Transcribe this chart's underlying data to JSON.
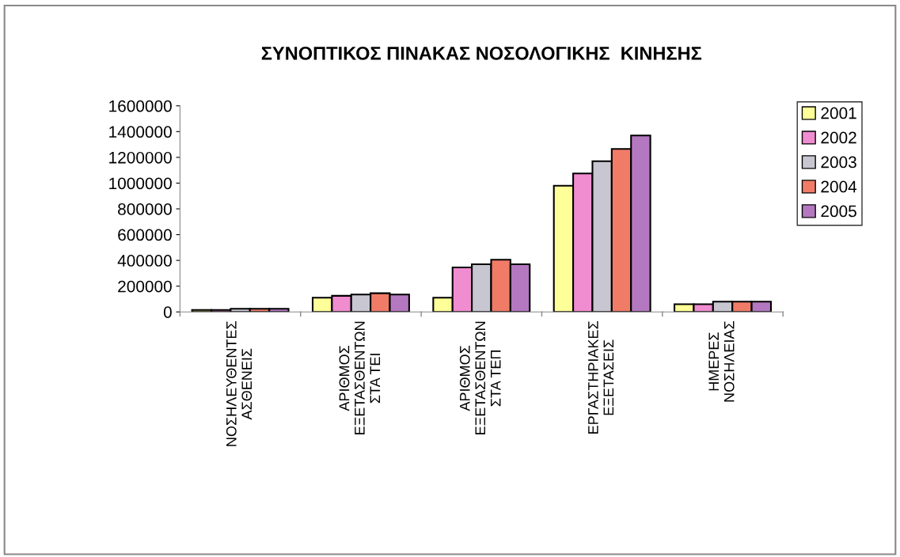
{
  "chart_data": {
    "type": "bar",
    "title": "ΣΥΝΟΠΤΙΚΟΣ ΠΙΝΑΚΑΣ ΝΟΣΟΛΟΓΙΚΗΣ  ΚΙΝΗΣΗΣ",
    "categories": [
      "ΝΟΣΗΛΕΥΘΕΝΤΕΣ\nΑΣΘΕΝΕΙΣ",
      "ΑΡΙΘΜΟΣ\nΕΞΕΤΑΣΘΕΝΤΩΝ\nΣΤΑ ΤΕΙ",
      "ΑΡΙΘΜΟΣ\nΕΞΕΤΑΣΘΕΝΤΩΝ\nΣΤΑ ΤΕΠ",
      "ΕΡΓΑΣΤΗΡΙΑΚΕΣ\nΕΞΕΤΑΣΕΙΣ",
      "ΗΜΕΡΕΣ\nΝΟΣΗΛΕΙΑΣ"
    ],
    "series": [
      {
        "name": "2001",
        "color": "#ffff99",
        "values": [
          15000,
          110000,
          110000,
          980000,
          60000
        ]
      },
      {
        "name": "2002",
        "color": "#f08cd0",
        "values": [
          15000,
          125000,
          345000,
          1075000,
          60000
        ]
      },
      {
        "name": "2003",
        "color": "#c8c6d0",
        "values": [
          25000,
          135000,
          370000,
          1170000,
          80000
        ]
      },
      {
        "name": "2004",
        "color": "#f07c68",
        "values": [
          25000,
          145000,
          405000,
          1265000,
          80000
        ]
      },
      {
        "name": "2005",
        "color": "#b478c0",
        "values": [
          25000,
          135000,
          370000,
          1370000,
          80000
        ]
      }
    ],
    "ylim": [
      0,
      1600000
    ],
    "yticks": [
      0,
      200000,
      400000,
      600000,
      800000,
      1000000,
      1200000,
      1400000,
      1600000
    ],
    "grid": false,
    "legend": "right"
  }
}
